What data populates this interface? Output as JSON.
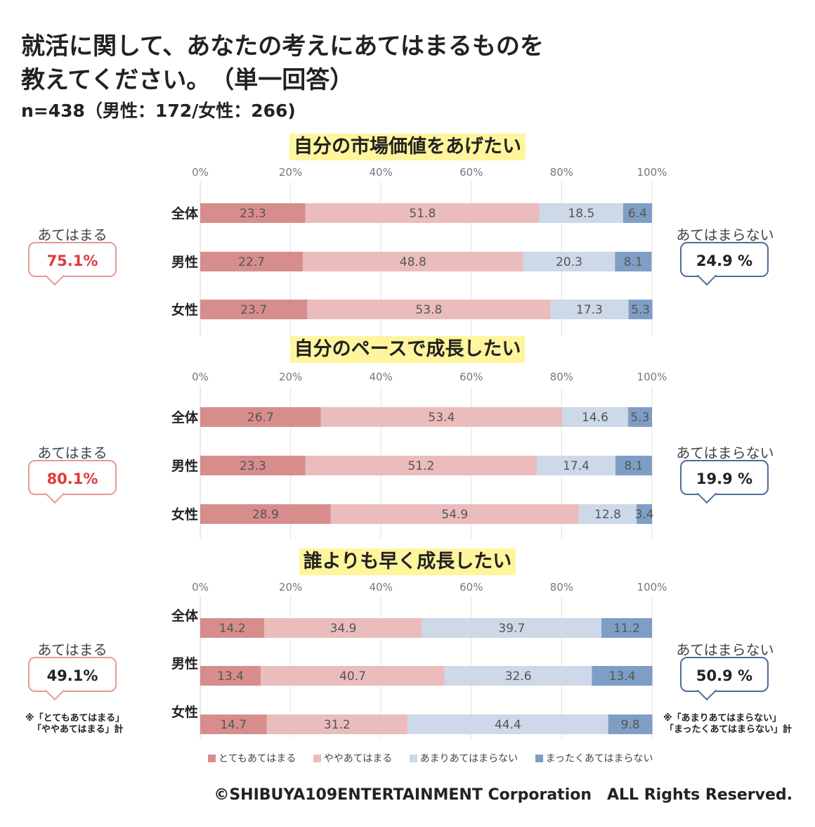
{
  "title_lines": [
    "就活に関して、あなたの考えにあてはまるものを",
    "教えてください。　（単一回答）"
  ],
  "sample": "n=438（男性：172/女性：266)",
  "x_ticks": [
    "0%",
    "20%",
    "40%",
    "60%",
    "80%",
    "100%"
  ],
  "colors": {
    "very": "#d88d8d",
    "somewhat": "#ebbcbc",
    "not_much": "#cdd8e8",
    "not_at_all": "#7f9ec6"
  },
  "agree_label": "あてはまる",
  "disagree_label": "あてはまらない",
  "chart_data": [
    {
      "type": "bar",
      "stacked": true,
      "orientation": "horizontal",
      "title": "自分の市場価値をあげたい",
      "categories": [
        "全体",
        "男性",
        "女性"
      ],
      "xlim": [
        0,
        100
      ],
      "series": [
        {
          "name": "とてもあてはまる",
          "values": [
            23.3,
            22.7,
            23.7
          ]
        },
        {
          "name": "ややあてはまる",
          "values": [
            51.8,
            48.8,
            53.8
          ]
        },
        {
          "name": "あまりあてはまらない",
          "values": [
            18.5,
            20.3,
            17.3
          ]
        },
        {
          "name": "まったくあてはまらない",
          "values": [
            6.4,
            8.1,
            5.3
          ]
        }
      ],
      "agree_total": "75.1%",
      "disagree_total": "24.9 %"
    },
    {
      "type": "bar",
      "stacked": true,
      "orientation": "horizontal",
      "title": "自分のペースで成長したい",
      "categories": [
        "全体",
        "男性",
        "女性"
      ],
      "xlim": [
        0,
        100
      ],
      "series": [
        {
          "name": "とてもあてはまる",
          "values": [
            26.7,
            23.3,
            28.9
          ]
        },
        {
          "name": "ややあてはまる",
          "values": [
            53.4,
            51.2,
            54.9
          ]
        },
        {
          "name": "あまりあてはまらない",
          "values": [
            14.6,
            17.4,
            12.8
          ]
        },
        {
          "name": "まったくあてはまらない",
          "values": [
            5.3,
            8.1,
            3.4
          ]
        }
      ],
      "agree_total": "80.1%",
      "disagree_total": "19.9 %"
    },
    {
      "type": "bar",
      "stacked": true,
      "orientation": "horizontal",
      "title": "誰よりも早く成長したい",
      "categories": [
        "全体",
        "男性",
        "女性"
      ],
      "xlim": [
        0,
        100
      ],
      "series": [
        {
          "name": "とてもあてはまる",
          "values": [
            14.2,
            13.4,
            14.7
          ]
        },
        {
          "name": "ややあてはまる",
          "values": [
            34.9,
            40.7,
            31.2
          ]
        },
        {
          "name": "あまりあてはまらない",
          "values": [
            39.7,
            32.6,
            44.4
          ]
        },
        {
          "name": "まったくあてはまらない",
          "values": [
            11.2,
            13.4,
            9.8
          ]
        }
      ],
      "agree_total": "49.1%",
      "disagree_total": "50.9 %"
    }
  ],
  "notes": {
    "agree": [
      "※「とてもあてはまる」",
      "「ややあてはまる」計"
    ],
    "disagree": [
      "※「あまりあてはまらない」",
      "「まったくあてはまらない」計"
    ]
  },
  "legend": [
    "とてもあてはまる",
    "ややあてはまる",
    "あまりあてはまらない",
    "まったくあてはまらない"
  ],
  "copyright": "©SHIBUYA109ENTERTAINMENT Corporation　ALL Rights Reserved."
}
